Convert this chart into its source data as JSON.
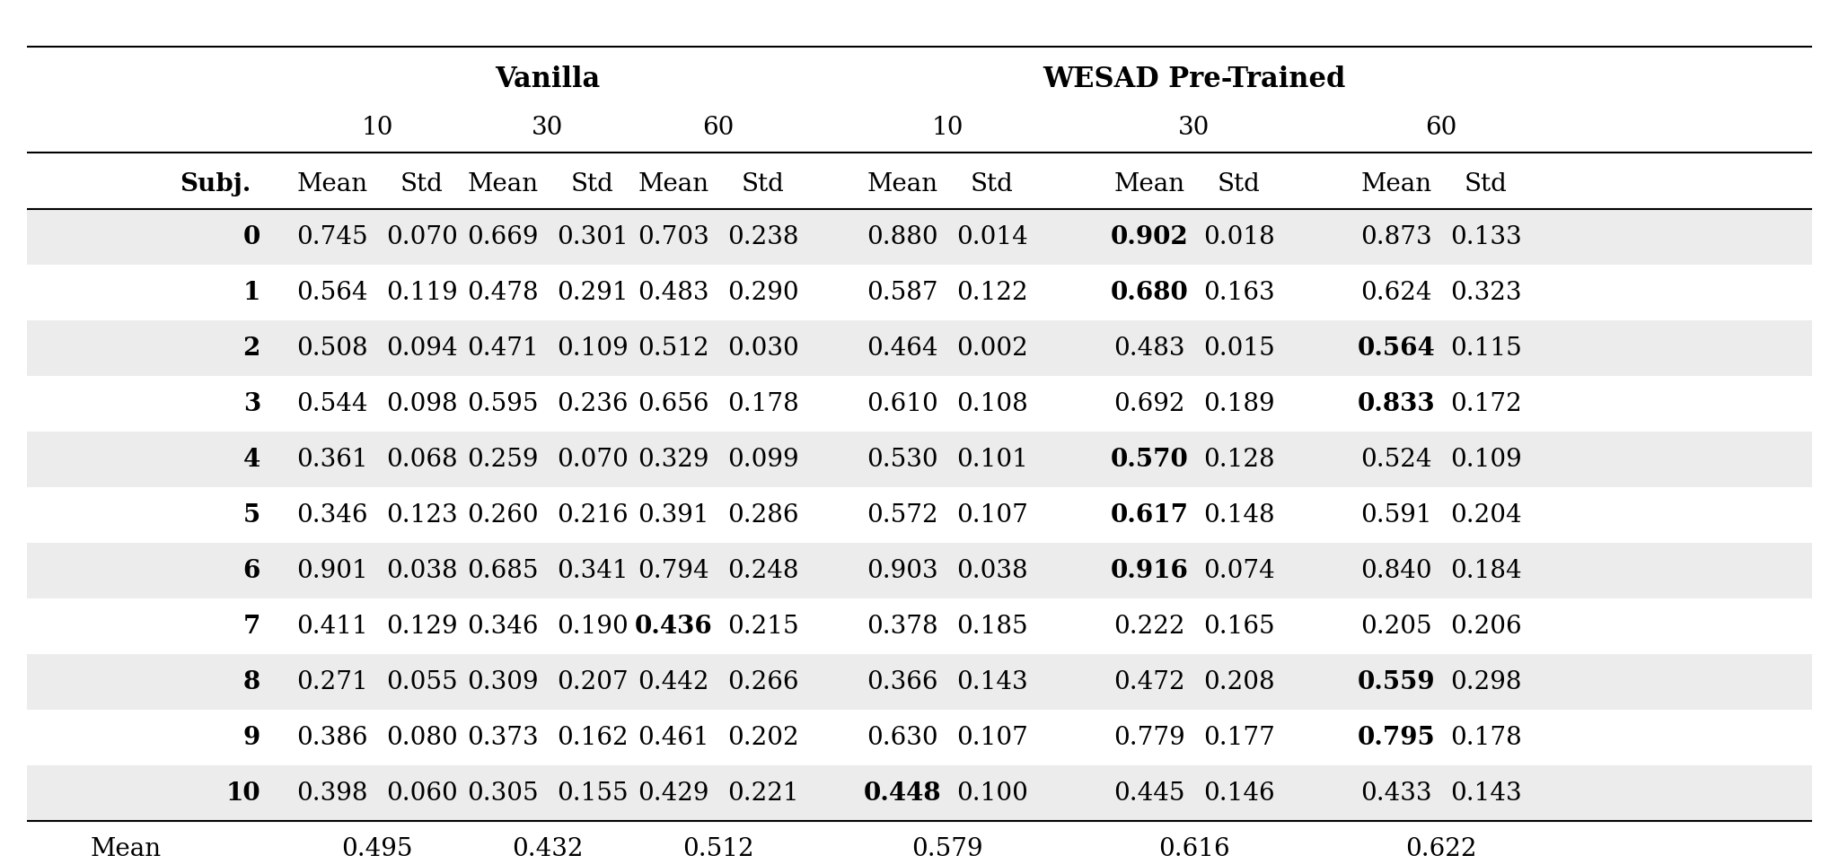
{
  "group1_label": "Vanilla",
  "group2_label": "WESAD Pre-Trained",
  "window_labels": [
    "10",
    "30",
    "60",
    "10",
    "30",
    "60"
  ],
  "col_header": [
    "Mean",
    "Std",
    "Mean",
    "Std",
    "Mean",
    "Std",
    "Mean",
    "Std",
    "Mean",
    "Std",
    "Mean",
    "Std"
  ],
  "subj_label": "Subj.",
  "rows": [
    {
      "subj": "0",
      "vals": [
        0.745,
        0.07,
        0.669,
        0.301,
        0.703,
        0.238,
        0.88,
        0.014,
        0.902,
        0.018,
        0.873,
        0.133
      ],
      "bold_idx": [
        8
      ]
    },
    {
      "subj": "1",
      "vals": [
        0.564,
        0.119,
        0.478,
        0.291,
        0.483,
        0.29,
        0.587,
        0.122,
        0.68,
        0.163,
        0.624,
        0.323
      ],
      "bold_idx": [
        8
      ]
    },
    {
      "subj": "2",
      "vals": [
        0.508,
        0.094,
        0.471,
        0.109,
        0.512,
        0.03,
        0.464,
        0.002,
        0.483,
        0.015,
        0.564,
        0.115
      ],
      "bold_idx": [
        10
      ]
    },
    {
      "subj": "3",
      "vals": [
        0.544,
        0.098,
        0.595,
        0.236,
        0.656,
        0.178,
        0.61,
        0.108,
        0.692,
        0.189,
        0.833,
        0.172
      ],
      "bold_idx": [
        10
      ]
    },
    {
      "subj": "4",
      "vals": [
        0.361,
        0.068,
        0.259,
        0.07,
        0.329,
        0.099,
        0.53,
        0.101,
        0.57,
        0.128,
        0.524,
        0.109
      ],
      "bold_idx": [
        8
      ]
    },
    {
      "subj": "5",
      "vals": [
        0.346,
        0.123,
        0.26,
        0.216,
        0.391,
        0.286,
        0.572,
        0.107,
        0.617,
        0.148,
        0.591,
        0.204
      ],
      "bold_idx": [
        8
      ]
    },
    {
      "subj": "6",
      "vals": [
        0.901,
        0.038,
        0.685,
        0.341,
        0.794,
        0.248,
        0.903,
        0.038,
        0.916,
        0.074,
        0.84,
        0.184
      ],
      "bold_idx": [
        8
      ]
    },
    {
      "subj": "7",
      "vals": [
        0.411,
        0.129,
        0.346,
        0.19,
        0.436,
        0.215,
        0.378,
        0.185,
        0.222,
        0.165,
        0.205,
        0.206
      ],
      "bold_idx": [
        4
      ]
    },
    {
      "subj": "8",
      "vals": [
        0.271,
        0.055,
        0.309,
        0.207,
        0.442,
        0.266,
        0.366,
        0.143,
        0.472,
        0.208,
        0.559,
        0.298
      ],
      "bold_idx": [
        10
      ]
    },
    {
      "subj": "9",
      "vals": [
        0.386,
        0.08,
        0.373,
        0.162,
        0.461,
        0.202,
        0.63,
        0.107,
        0.779,
        0.177,
        0.795,
        0.178
      ],
      "bold_idx": [
        10
      ]
    },
    {
      "subj": "10",
      "vals": [
        0.398,
        0.06,
        0.305,
        0.155,
        0.429,
        0.221,
        0.448,
        0.1,
        0.445,
        0.146,
        0.433,
        0.143
      ],
      "bold_idx": [
        6
      ]
    }
  ],
  "mean_row": [
    "Mean",
    0.495,
    0.432,
    0.512,
    0.579,
    0.616,
    0.622
  ],
  "shaded_rows": [
    0,
    2,
    4,
    6,
    8,
    10
  ],
  "shade_color": "#ececec",
  "bg_color": "#ffffff",
  "text_color": "#000000",
  "border_color": "#000000"
}
